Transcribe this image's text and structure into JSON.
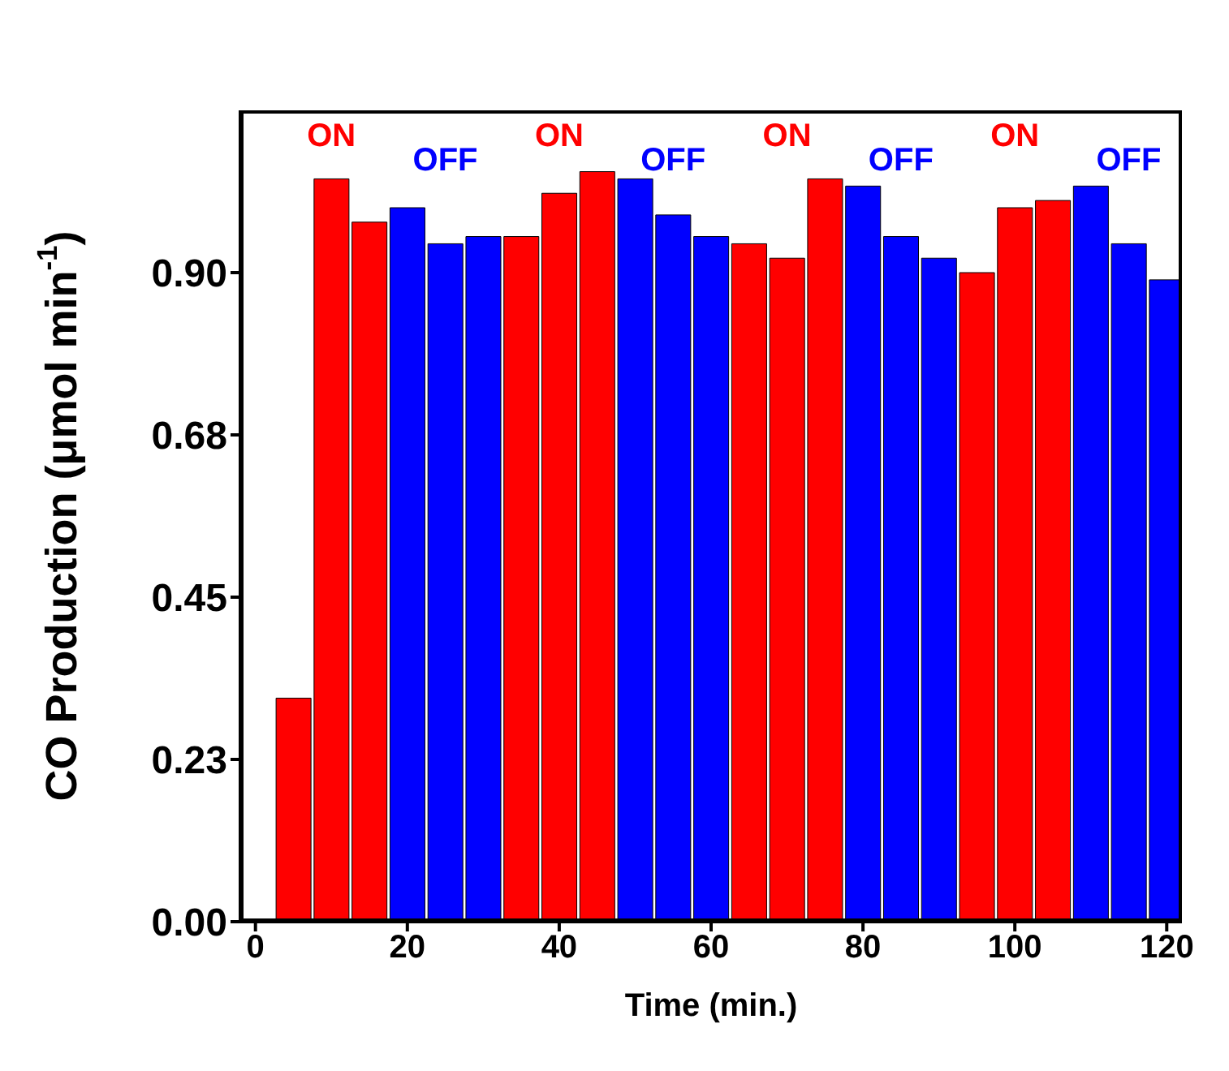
{
  "chart_data": {
    "type": "bar",
    "xlabel": "Time (min.)",
    "ylabel": "CO Production (μmol min$^{-1}$)",
    "x": [
      5,
      10,
      15,
      20,
      25,
      30,
      35,
      40,
      45,
      50,
      55,
      60,
      65,
      70,
      75,
      80,
      85,
      90,
      95,
      100,
      105,
      110,
      115,
      120
    ],
    "values": [
      0.31,
      1.03,
      0.97,
      0.99,
      0.94,
      0.95,
      0.95,
      1.01,
      1.04,
      1.03,
      0.98,
      0.95,
      0.94,
      0.92,
      1.03,
      1.02,
      0.95,
      0.92,
      0.9,
      0.99,
      1.0,
      1.02,
      0.94,
      0.89
    ],
    "colors": [
      "#ff0000",
      "#ff0000",
      "#ff0000",
      "#0000ff",
      "#0000ff",
      "#0000ff",
      "#ff0000",
      "#ff0000",
      "#ff0000",
      "#0000ff",
      "#0000ff",
      "#0000ff",
      "#ff0000",
      "#ff0000",
      "#ff0000",
      "#0000ff",
      "#0000ff",
      "#0000ff",
      "#ff0000",
      "#ff0000",
      "#ff0000",
      "#0000ff",
      "#0000ff",
      "#0000ff"
    ],
    "xlim": [
      -2,
      122
    ],
    "xticks": [
      0,
      20,
      40,
      60,
      80,
      100,
      120
    ],
    "ylim": [
      0,
      1.125
    ],
    "yticks": [
      {
        "value": 0,
        "label": "0.00"
      },
      {
        "value": 0.225,
        "label": "0.23"
      },
      0.45,
      {
        "value": 0.675,
        "label": "0.68"
      },
      {
        "value": 0.9,
        "label": "0.90"
      }
    ],
    "grid": false,
    "legend": false,
    "annotations": [
      "ON",
      "OFF",
      "ON",
      "OFF",
      "ON",
      "OFF",
      "ON",
      "OFF"
    ]
  }
}
